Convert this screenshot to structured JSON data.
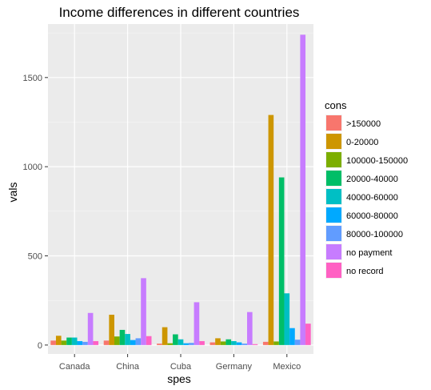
{
  "chart_data": {
    "type": "bar",
    "title": "Income differences in different countries",
    "xlabel": "spes",
    "ylabel": "vals",
    "ylim": [
      -50,
      1800
    ],
    "yticks": [
      0,
      500,
      1000,
      1500
    ],
    "grid": true,
    "legend_position": "right",
    "legend_title": "cons",
    "categories": [
      "Canada",
      "China",
      "Cuba",
      "Germany",
      "Mexico"
    ],
    "series": [
      {
        "name": ">150000",
        "color": "#F8766D",
        "values": [
          25,
          25,
          8,
          15,
          18
        ]
      },
      {
        "name": "0-20000",
        "color": "#CD9600",
        "values": [
          52,
          170,
          100,
          38,
          1290
        ]
      },
      {
        "name": "100000-150000",
        "color": "#7CAE00",
        "values": [
          25,
          48,
          10,
          20,
          20
        ]
      },
      {
        "name": "20000-40000",
        "color": "#00BE67",
        "values": [
          42,
          85,
          60,
          32,
          940
        ]
      },
      {
        "name": "40000-60000",
        "color": "#00BFC4",
        "values": [
          42,
          62,
          32,
          22,
          290
        ]
      },
      {
        "name": "60000-80000",
        "color": "#00A9FF",
        "values": [
          22,
          28,
          10,
          15,
          95
        ]
      },
      {
        "name": "80000-100000",
        "color": "#619CFF",
        "values": [
          18,
          38,
          12,
          8,
          30
        ]
      },
      {
        "name": "no payment",
        "color": "#C77CFF",
        "values": [
          180,
          375,
          240,
          185,
          1740
        ]
      },
      {
        "name": "no record",
        "color": "#FF61C3",
        "values": [
          22,
          50,
          22,
          5,
          120
        ]
      }
    ]
  }
}
